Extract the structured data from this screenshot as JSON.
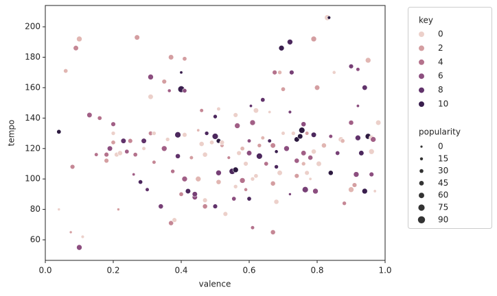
{
  "chart_data": {
    "type": "scatter",
    "x_label": "valence",
    "y_label": "tempo",
    "xlim": [
      0,
      1
    ],
    "ylim": [
      46.5,
      214
    ],
    "xticks": [
      {
        "value": 0,
        "label": "0.0"
      },
      0.2,
      0.4,
      0.6,
      0.8,
      {
        "value": 1,
        "label": "1.0"
      }
    ],
    "yticks": [
      60,
      80,
      100,
      120,
      140,
      160,
      180,
      200
    ],
    "palette": [
      "#ecd0ca",
      "#e1b6b2",
      "#d49ea1",
      "#c58795",
      "#b4728c",
      "#a15f86",
      "#8c4e7f",
      "#774076",
      "#61336b",
      "#4c285d",
      "#391e4d",
      "#2d1a40"
    ],
    "hue_legend": {
      "title": "key",
      "levels": [
        0,
        2,
        4,
        6,
        8,
        10
      ]
    },
    "size_legend": {
      "title": "popularity",
      "levels": [
        0,
        15,
        30,
        45,
        60,
        75,
        90
      ],
      "color": "#333333"
    },
    "x": [
      0.04,
      0.04,
      0.06,
      0.075,
      0.08,
      0.09,
      0.1,
      0.1,
      0.11,
      0.13,
      0.15,
      0.16,
      0.18,
      0.18,
      0.19,
      0.2,
      0.2,
      0.2,
      0.21,
      0.215,
      0.22,
      0.23,
      0.24,
      0.25,
      0.26,
      0.265,
      0.27,
      0.28,
      0.29,
      0.29,
      0.3,
      0.31,
      0.31,
      0.31,
      0.32,
      0.32,
      0.34,
      0.35,
      0.35,
      0.36,
      0.365,
      0.37,
      0.37,
      0.375,
      0.38,
      0.39,
      0.39,
      0.4,
      0.4,
      0.4,
      0.41,
      0.41,
      0.41,
      0.41,
      0.42,
      0.43,
      0.44,
      0.44,
      0.45,
      0.45,
      0.46,
      0.46,
      0.47,
      0.47,
      0.47,
      0.475,
      0.49,
      0.5,
      0.5,
      0.51,
      0.5,
      0.51,
      0.51,
      0.51,
      0.52,
      0.52,
      0.53,
      0.54,
      0.55,
      0.555,
      0.56,
      0.565,
      0.56,
      0.56,
      0.57,
      0.58,
      0.58,
      0.59,
      0.59,
      0.6,
      0.6,
      0.6,
      0.605,
      0.61,
      0.61,
      0.61,
      0.62,
      0.62,
      0.63,
      0.63,
      0.64,
      0.64,
      0.65,
      0.66,
      0.66,
      0.67,
      0.67,
      0.67,
      0.675,
      0.68,
      0.68,
      0.68,
      0.69,
      0.69,
      0.695,
      0.7,
      0.7,
      0.71,
      0.72,
      0.72,
      0.72,
      0.725,
      0.73,
      0.74,
      0.74,
      0.74,
      0.75,
      0.755,
      0.76,
      0.76,
      0.76,
      0.77,
      0.765,
      0.77,
      0.78,
      0.78,
      0.79,
      0.79,
      0.79,
      0.795,
      0.8,
      0.805,
      0.82,
      0.83,
      0.835,
      0.84,
      0.84,
      0.85,
      0.86,
      0.87,
      0.875,
      0.88,
      0.9,
      0.9,
      0.9,
      0.91,
      0.915,
      0.92,
      0.92,
      0.92,
      0.93,
      0.94,
      0.94,
      0.95,
      0.95,
      0.96,
      0.96,
      0.96,
      0.965,
      0.97,
      0.98
    ],
    "y": [
      131,
      80,
      171,
      65,
      108,
      186,
      192,
      55,
      62,
      142,
      116,
      140,
      112,
      116,
      120,
      136,
      124,
      130,
      116,
      80,
      117,
      125,
      118,
      125,
      103,
      116,
      193,
      98,
      125,
      120,
      93,
      154,
      130,
      167,
      130,
      111,
      82,
      120,
      164,
      126,
      158,
      71,
      180,
      105,
      73,
      129,
      115,
      159,
      170,
      90,
      179,
      158,
      100,
      129,
      92,
      114,
      88,
      90,
      100,
      132,
      145,
      123,
      82,
      86,
      116,
      130,
      124,
      141,
      82,
      98,
      128,
      146,
      104,
      125,
      122,
      124,
      77,
      114,
      105,
      87,
      142,
      135,
      106,
      95,
      117,
      99,
      120,
      93,
      110,
      87,
      117,
      125,
      148,
      137,
      68,
      100,
      102,
      145,
      122,
      115,
      127,
      152,
      110,
      144,
      125,
      65,
      97,
      122,
      170,
      85,
      118,
      108,
      104,
      170,
      186,
      159,
      130,
      120,
      190,
      90,
      144,
      170,
      130,
      112,
      102,
      126,
      128,
      132,
      117,
      136,
      110,
      104,
      93,
      130,
      100,
      114,
      129,
      118,
      192,
      92,
      160,
      110,
      122,
      206,
      206,
      128,
      104,
      170,
      117,
      126,
      125,
      84,
      174,
      137,
      93,
      96,
      103,
      172,
      148,
      127,
      117,
      92,
      160,
      178,
      128,
      118,
      103,
      127,
      126,
      92,
      137
    ],
    "hue": [
      11,
      0,
      1,
      2,
      3,
      3,
      1,
      6,
      0,
      5,
      4,
      4,
      2,
      4,
      6,
      5,
      2,
      0,
      0,
      2,
      0,
      8,
      5,
      3,
      5,
      4,
      2,
      9,
      8,
      0,
      8,
      0,
      3,
      6,
      0,
      3,
      7,
      5,
      2,
      0,
      5,
      3,
      2,
      4,
      0,
      9,
      8,
      10,
      10,
      3,
      2,
      6,
      5,
      0,
      9,
      2,
      6,
      7,
      1,
      1,
      3,
      0,
      3,
      0,
      0,
      9,
      0,
      9,
      8,
      1,
      9,
      0,
      7,
      11,
      2,
      0,
      0,
      3,
      9,
      6,
      0,
      5,
      11,
      0,
      0,
      4,
      1,
      3,
      0,
      9,
      6,
      6,
      8,
      5,
      4,
      0,
      0,
      0,
      2,
      9,
      1,
      8,
      4,
      0,
      9,
      3,
      2,
      3,
      4,
      0,
      10,
      9,
      0,
      1,
      10,
      2,
      0,
      6,
      9,
      7,
      7,
      7,
      0,
      5,
      2,
      11,
      11,
      11,
      5,
      6,
      1,
      0,
      7,
      2,
      0,
      5,
      9,
      0,
      2,
      6,
      2,
      0,
      1,
      0,
      11,
      6,
      11,
      0,
      7,
      0,
      1,
      3,
      7,
      5,
      1,
      2,
      6,
      6,
      6,
      8,
      9,
      10,
      8,
      1,
      11,
      0,
      6,
      0,
      5,
      0,
      0
    ],
    "size": [
      40,
      10,
      40,
      10,
      45,
      55,
      60,
      60,
      20,
      55,
      30,
      40,
      45,
      45,
      55,
      45,
      40,
      35,
      45,
      10,
      50,
      55,
      40,
      45,
      15,
      40,
      55,
      40,
      55,
      30,
      30,
      55,
      40,
      60,
      35,
      30,
      50,
      60,
      45,
      35,
      25,
      50,
      55,
      35,
      45,
      70,
      50,
      80,
      15,
      40,
      40,
      40,
      60,
      45,
      55,
      30,
      55,
      55,
      60,
      15,
      30,
      50,
      50,
      45,
      50,
      35,
      40,
      35,
      45,
      50,
      70,
      30,
      60,
      45,
      30,
      45,
      45,
      20,
      70,
      40,
      45,
      60,
      60,
      35,
      45,
      60,
      40,
      25,
      45,
      40,
      55,
      30,
      15,
      60,
      30,
      35,
      40,
      55,
      35,
      70,
      30,
      40,
      40,
      15,
      30,
      50,
      50,
      55,
      45,
      50,
      25,
      35,
      55,
      35,
      60,
      40,
      30,
      60,
      60,
      10,
      20,
      45,
      35,
      50,
      45,
      55,
      55,
      70,
      55,
      50,
      35,
      45,
      70,
      30,
      15,
      50,
      55,
      50,
      60,
      60,
      55,
      55,
      50,
      65,
      20,
      30,
      50,
      25,
      40,
      55,
      40,
      35,
      45,
      50,
      60,
      45,
      60,
      30,
      15,
      60,
      55,
      60,
      55,
      60,
      65,
      60,
      45,
      55,
      60,
      15,
      55
    ]
  }
}
